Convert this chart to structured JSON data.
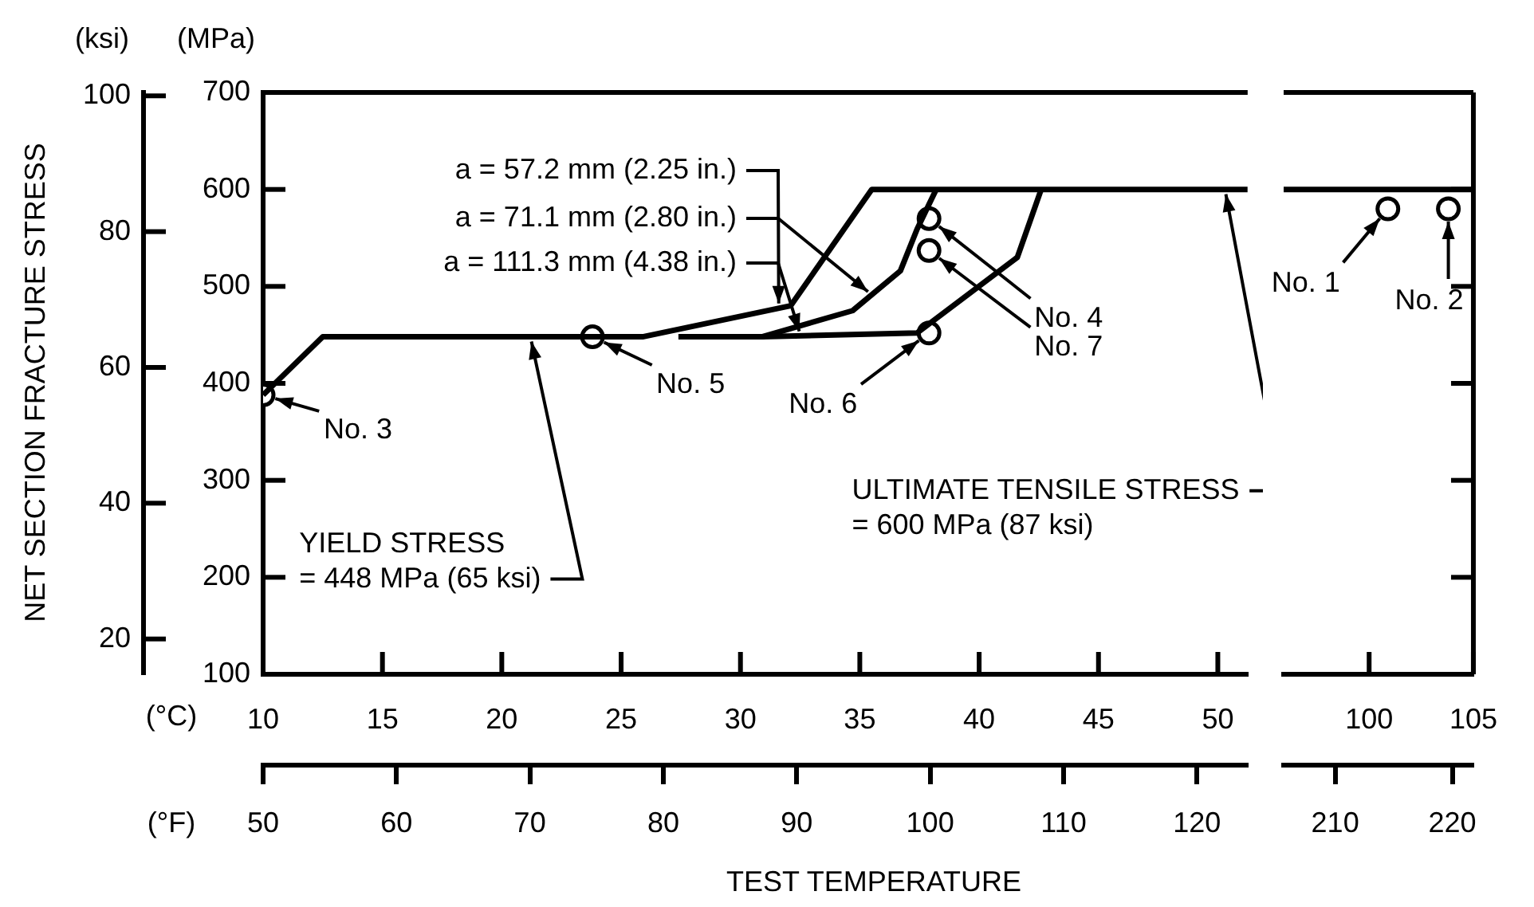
{
  "chart_data": [
    {
      "type": "line",
      "ylabel": "(MPa)",
      "y2label": "(ksi)",
      "xlabel": "(°C)",
      "x2label": "(°F)",
      "xlim": [
        10,
        51.25
      ],
      "xticks": [
        10,
        15,
        20,
        25,
        30,
        35,
        40,
        45,
        50
      ],
      "x2lim": [
        50,
        123.8
      ],
      "x2ticks": [
        50,
        60,
        70,
        80,
        90,
        100,
        110,
        120
      ],
      "ylim": [
        100,
        700
      ],
      "yticks": [
        100,
        200,
        300,
        400,
        500,
        600,
        700
      ],
      "y2lim": [
        14.8,
        100.5
      ],
      "y2ticks": [
        20,
        40,
        60,
        80,
        100
      ],
      "series": [
        {
          "name": "a = 57.2 mm (2.25 in.)",
          "color": "#000000",
          "marker": "none",
          "x": [
            10,
            12.5,
            25.9,
            32.1,
            35.5,
            51.25
          ],
          "values": [
            388,
            448,
            448,
            480,
            600,
            600
          ]
        },
        {
          "name": "a = 71.1 mm (2.80 in.)",
          "color": "#000000",
          "marker": "none",
          "x": [
            27.4,
            30.9,
            34.7,
            36.7,
            37.4,
            38.2
          ],
          "values": [
            448,
            448,
            475,
            516,
            559,
            600
          ]
        },
        {
          "name": "a = 111.3 mm (4.38 in.)",
          "color": "#000000",
          "marker": "none",
          "x": [
            30.9,
            37.4,
            41.6,
            42.6
          ],
          "values": [
            448,
            452,
            530,
            600
          ]
        },
        {
          "type": "scatter",
          "color": "#000000",
          "marker": "circle",
          "x": [
            10,
            23.8,
            37.9,
            37.9,
            37.9
          ],
          "values": [
            388,
            448,
            570,
            537,
            452
          ]
        }
      ],
      "annotations": [
        "NET SECTION FRACTURE STRESS",
        "TEST TEMPERATURE",
        {
          "text": "No. 3",
          "x": 10,
          "y": 388
        },
        {
          "text": "No. 5",
          "x": 23.8,
          "y": 448
        },
        {
          "text": "No. 6",
          "x": 37.9,
          "y": 452
        },
        {
          "text": "No. 4",
          "x": 37.9,
          "y": 570
        },
        {
          "text": "No. 7",
          "x": 37.9,
          "y": 537
        },
        {
          "text": "YIELD STRESS\n= 448 MPa (65 ksi)",
          "x": 21.2,
          "y": 448
        },
        {
          "text": "ULTIMATE TENSILE STRESS\n= 600 MPa (87 ksi)",
          "x": 50.3,
          "y": 600
        }
      ]
    },
    {
      "type": "line",
      "tick_labels": "x",
      "xlim": [
        95.9,
        105
      ],
      "xticks": [
        100,
        105
      ],
      "x2lim": [
        205.6,
        221.8
      ],
      "x2ticks": [
        210,
        220
      ],
      "ylim": [
        100,
        700
      ],
      "yticks": [
        100,
        200,
        300,
        400,
        500,
        600,
        700
      ],
      "series": [
        {
          "color": "#000000",
          "marker": "none",
          "x": [
            95.9,
            105
          ],
          "values": [
            600,
            600
          ]
        },
        {
          "type": "scatter",
          "color": "#000000",
          "marker": "circle",
          "x": [
            100.9,
            103.8
          ],
          "values": [
            580,
            580
          ]
        }
      ],
      "annotations": [
        {
          "text": "No. 1",
          "x": 100.9,
          "y": 580
        },
        {
          "text": "No. 2",
          "x": 103.8,
          "y": 580
        }
      ]
    }
  ]
}
